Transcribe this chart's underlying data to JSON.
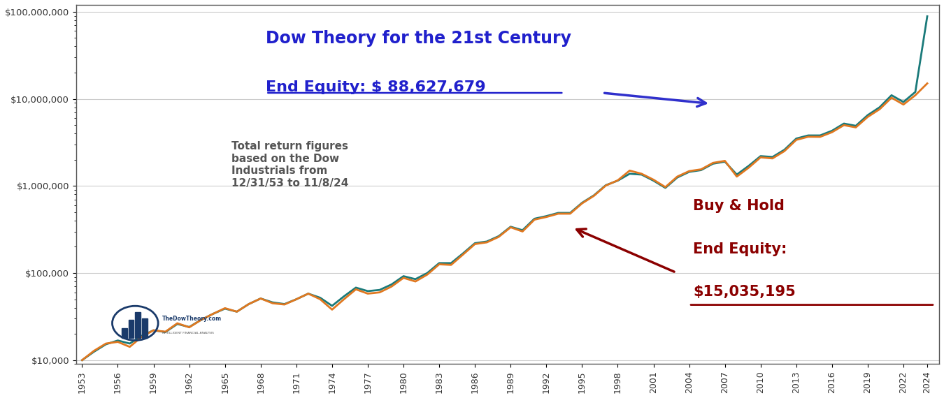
{
  "title": "Dow Theory for the 21st Century",
  "subtitle_equity": "End Equity: $ 88,627,679",
  "note_text": "Total return figures\nbased on the Dow\nIndustrials from\n12/31/53 to 11/8/24",
  "bh_label_line1": "Buy & Hold",
  "bh_label_line2": "End Equity:",
  "bh_label_line3": "$15,035,195",
  "dt_color": "#1a7a7a",
  "bh_color": "#e07820",
  "arrow_dt_color": "#3030cc",
  "arrow_bh_color": "#8b0000",
  "title_color": "#2020cc",
  "bh_text_color": "#8b0000",
  "note_color": "#555555",
  "background_color": "#ffffff",
  "plot_bg_color": "#ffffff",
  "border_color": "#555555",
  "x_ticks": [
    1953,
    1956,
    1959,
    1962,
    1965,
    1968,
    1971,
    1974,
    1977,
    1980,
    1983,
    1986,
    1989,
    1992,
    1995,
    1998,
    2001,
    2004,
    2007,
    2010,
    2013,
    2016,
    2019,
    2022,
    2024
  ],
  "y_ticks": [
    10000,
    100000,
    1000000,
    10000000,
    100000000
  ],
  "y_tick_labels": [
    "$10,000",
    "$100,000",
    "$1,000,000",
    "$10,000,000",
    "$100,000,000"
  ],
  "ylim_log": [
    9000,
    120000000
  ],
  "xlim": [
    1952.5,
    2025
  ],
  "dt_series": {
    "years": [
      1953,
      1954,
      1955,
      1956,
      1957,
      1958,
      1959,
      1960,
      1961,
      1962,
      1963,
      1964,
      1965,
      1966,
      1967,
      1968,
      1969,
      1970,
      1971,
      1972,
      1973,
      1974,
      1975,
      1976,
      1977,
      1978,
      1979,
      1980,
      1981,
      1982,
      1983,
      1984,
      1985,
      1986,
      1987,
      1988,
      1989,
      1990,
      1991,
      1992,
      1993,
      1994,
      1995,
      1996,
      1997,
      1998,
      1999,
      2000,
      2001,
      2002,
      2003,
      2004,
      2005,
      2006,
      2007,
      2008,
      2009,
      2010,
      2011,
      2012,
      2013,
      2014,
      2015,
      2016,
      2017,
      2018,
      2019,
      2020,
      2021,
      2022,
      2023,
      2024
    ],
    "values": [
      10000,
      12500,
      15200,
      16800,
      15500,
      19000,
      22000,
      21000,
      26000,
      24000,
      29000,
      34000,
      39000,
      36000,
      44000,
      51000,
      46000,
      44000,
      50000,
      58000,
      52000,
      42000,
      54000,
      68000,
      62000,
      64000,
      74000,
      92000,
      85000,
      100000,
      130000,
      130000,
      168000,
      220000,
      230000,
      265000,
      340000,
      310000,
      420000,
      450000,
      490000,
      490000,
      640000,
      780000,
      1020000,
      1150000,
      1380000,
      1350000,
      1150000,
      950000,
      1250000,
      1450000,
      1520000,
      1800000,
      1900000,
      1350000,
      1700000,
      2200000,
      2150000,
      2600000,
      3500000,
      3800000,
      3800000,
      4300000,
      5200000,
      4900000,
      6500000,
      8000000,
      11000000,
      9200000,
      12000000,
      88627679
    ]
  },
  "bh_series": {
    "years": [
      1953,
      1954,
      1955,
      1956,
      1957,
      1958,
      1959,
      1960,
      1961,
      1962,
      1963,
      1964,
      1965,
      1966,
      1967,
      1968,
      1969,
      1970,
      1971,
      1972,
      1973,
      1974,
      1975,
      1976,
      1977,
      1978,
      1979,
      1980,
      1981,
      1982,
      1983,
      1984,
      1985,
      1986,
      1987,
      1988,
      1989,
      1990,
      1991,
      1992,
      1993,
      1994,
      1995,
      1996,
      1997,
      1998,
      1999,
      2000,
      2001,
      2002,
      2003,
      2004,
      2005,
      2006,
      2007,
      2008,
      2009,
      2010,
      2011,
      2012,
      2013,
      2014,
      2015,
      2016,
      2017,
      2018,
      2019,
      2020,
      2021,
      2022,
      2023,
      2024
    ],
    "values": [
      10000,
      12800,
      15500,
      16200,
      14200,
      18500,
      22000,
      21200,
      26500,
      23800,
      29000,
      34000,
      39500,
      36000,
      44000,
      51000,
      45000,
      43500,
      50000,
      58000,
      50000,
      38000,
      50000,
      65000,
      58000,
      60000,
      70000,
      88000,
      80000,
      96000,
      126000,
      124000,
      163000,
      215000,
      225000,
      260000,
      335000,
      300000,
      410000,
      440000,
      480000,
      480000,
      630000,
      770000,
      1010000,
      1160000,
      1500000,
      1380000,
      1180000,
      970000,
      1280000,
      1480000,
      1550000,
      1840000,
      1940000,
      1280000,
      1620000,
      2130000,
      2070000,
      2510000,
      3380000,
      3670000,
      3660000,
      4140000,
      4990000,
      4700000,
      6200000,
      7600000,
      10300000,
      8600000,
      11000000,
      15035195
    ]
  }
}
